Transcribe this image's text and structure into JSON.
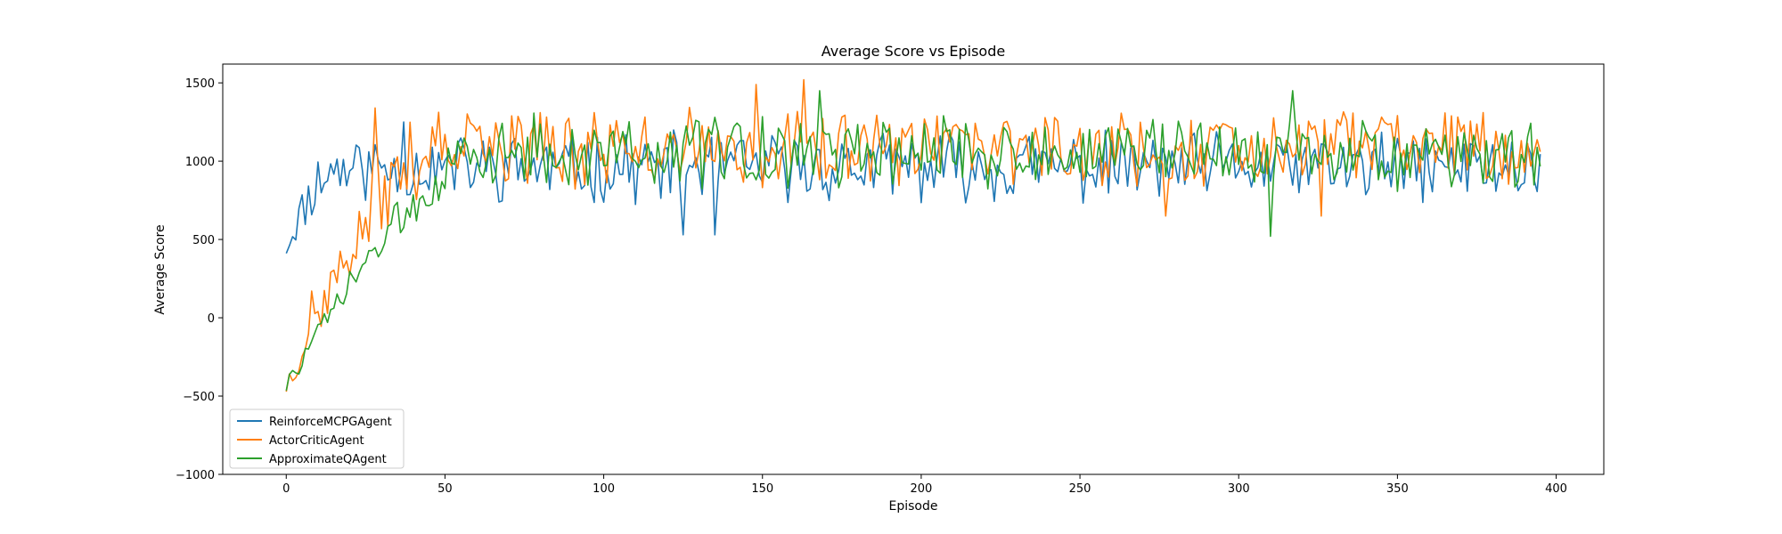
{
  "chart_data": {
    "type": "line",
    "title": "Average Score vs Episode",
    "xlabel": "Episode",
    "ylabel": "Average Score",
    "xlim": [
      -20,
      415
    ],
    "ylim": [
      -1000,
      1620
    ],
    "xticks": [
      0,
      50,
      100,
      150,
      200,
      250,
      300,
      350,
      400
    ],
    "yticks": [
      -1000,
      -500,
      0,
      500,
      1000,
      1500
    ],
    "xtick_labels": [
      "0",
      "50",
      "100",
      "150",
      "200",
      "250",
      "300",
      "350",
      "400"
    ],
    "ytick_labels": [
      "−1000",
      "−500",
      "0",
      "500",
      "1000",
      "1500"
    ],
    "grid": false,
    "legend_position": "lower-left",
    "series": [
      {
        "name": "ReinforceMCPGAgent",
        "color": "#1f77b4",
        "values": []
      },
      {
        "name": "ActorCriticAgent",
        "color": "#ff7f0e",
        "values": []
      },
      {
        "name": "ApproximateQAgent",
        "color": "#2ca02c",
        "values": []
      }
    ],
    "x_start": 0,
    "x_end": 395
  }
}
